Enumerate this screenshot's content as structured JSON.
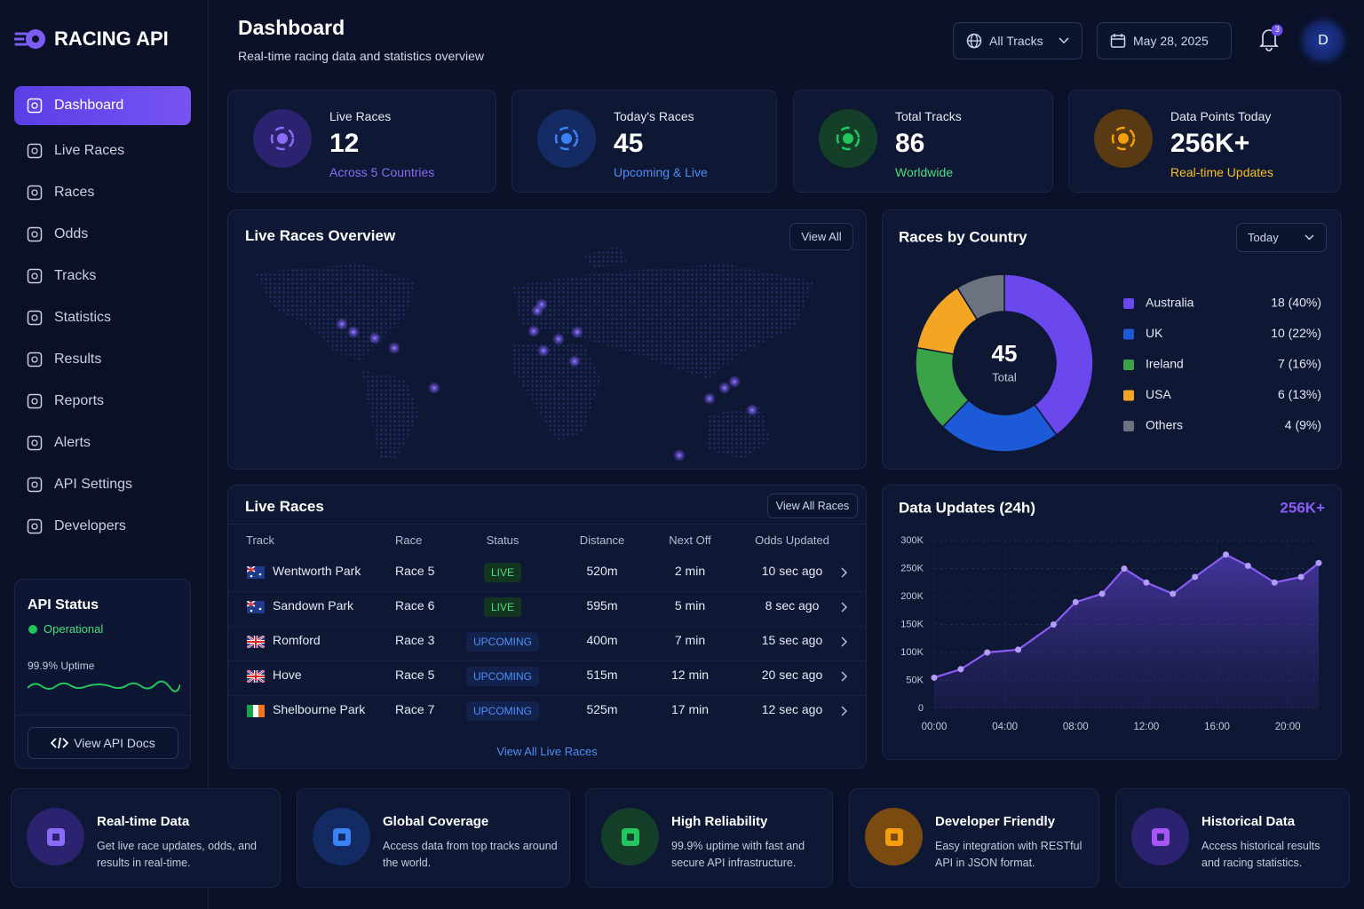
{
  "brand": "RACING API",
  "header": {
    "title": "Dashboard",
    "subtitle": "Real-time racing data and statistics overview",
    "track_filter": "All Tracks",
    "date": "May 28, 2025",
    "notifications": 3,
    "avatar": "D"
  },
  "nav": [
    "Dashboard",
    "Live Races",
    "Races",
    "Odds",
    "Tracks",
    "Statistics",
    "Results",
    "Reports",
    "Alerts",
    "API Settings",
    "Developers"
  ],
  "api_status": {
    "title": "API Status",
    "state": "Operational",
    "uptime": "99.9% Uptime",
    "button": "View API Docs"
  },
  "stats": [
    {
      "label": "Live Races",
      "value": 12,
      "note": "Across 5 Countries"
    },
    {
      "label": "Today's Races",
      "value": 45,
      "note": "Upcoming & Live"
    },
    {
      "label": "Total Tracks",
      "value": 86,
      "note": "Worldwide"
    },
    {
      "label": "Data Points Today",
      "value": "256K+",
      "note": "Real-time Updates"
    }
  ],
  "map": {
    "title": "Live Races Overview",
    "button": "View All"
  },
  "races_by_country": {
    "type": "pie",
    "title": "Races by Country",
    "period": "Today",
    "total": 45,
    "total_label": "Total",
    "categories": [
      "Australia",
      "UK",
      "Ireland",
      "USA",
      "Others"
    ],
    "values": [
      18,
      10,
      7,
      6,
      4
    ],
    "value_labels": [
      "18 (40%)",
      "10 (22%)",
      "7 (16%)",
      "6 (13%)",
      "4 (9%)"
    ],
    "colors": [
      "#6a48ee",
      "#1d5ad8",
      "#3aa348",
      "#f5a524",
      "#6b7280"
    ]
  },
  "live_races": {
    "title": "Live Races",
    "button": "View All Races",
    "columns": [
      "Track",
      "Race",
      "Status",
      "Distance",
      "Next Off",
      "Odds Updated"
    ],
    "rows": [
      [
        "Wentworth Park",
        "Race 5",
        "LIVE",
        "520m",
        "2 min",
        "10 sec ago"
      ],
      [
        "Sandown Park",
        "Race 6",
        "LIVE",
        "595m",
        "5 min",
        "8 sec ago"
      ],
      [
        "Romford",
        "Race 3",
        "UPCOMING",
        "400m",
        "7 min",
        "15 sec ago"
      ],
      [
        "Hove",
        "Race 5",
        "UPCOMING",
        "515m",
        "12 min",
        "20 sec ago"
      ],
      [
        "Shelbourne Park",
        "Race 7",
        "UPCOMING",
        "525m",
        "17 min",
        "12 sec ago"
      ]
    ],
    "footer": "View All Live Races"
  },
  "data_updates": {
    "type": "line",
    "title": "Data Updates (24h)",
    "badge": "256K+",
    "color": "#8b5cf6",
    "grid": true,
    "x": [
      0,
      1.5,
      3,
      4.75,
      6.75,
      8,
      9.5,
      10.75,
      12,
      13.5,
      14.75,
      16.5,
      17.75,
      19.25,
      20.75,
      21.75
    ],
    "values": [
      55000,
      70000,
      100000,
      105000,
      150000,
      190000,
      205000,
      250000,
      225000,
      205000,
      235000,
      275000,
      255000,
      225000,
      235000,
      260000
    ],
    "xlim": [
      0,
      21.75
    ],
    "ylim": [
      0,
      300000
    ],
    "xticks": [
      {
        "value": 0,
        "label": "00:00"
      },
      {
        "value": 4,
        "label": "04:00"
      },
      {
        "value": 8,
        "label": "08:00"
      },
      {
        "value": 12,
        "label": "12:00"
      },
      {
        "value": 16,
        "label": "16:00"
      },
      {
        "value": 20,
        "label": "20:00"
      }
    ],
    "yticks": [
      0,
      {
        "value": 50000,
        "label": "50K"
      },
      {
        "value": 100000,
        "label": "100K"
      },
      {
        "value": 150000,
        "label": "150K"
      },
      {
        "value": 200000,
        "label": "200K"
      },
      {
        "value": 250000,
        "label": "250K"
      },
      {
        "value": 300000,
        "label": "300K"
      }
    ]
  },
  "features": [
    {
      "title": "Real-time Data",
      "text": "Get live race updates, odds, and results in real-time."
    },
    {
      "title": "Global Coverage",
      "text": "Access data from top tracks around the world."
    },
    {
      "title": "High Reliability",
      "text": "99.9% uptime with fast and secure API infrastructure."
    },
    {
      "title": "Developer Friendly",
      "text": "Easy integration with RESTful API in JSON format."
    },
    {
      "title": "Historical Data",
      "text": "Access historical results and racing statistics."
    }
  ]
}
